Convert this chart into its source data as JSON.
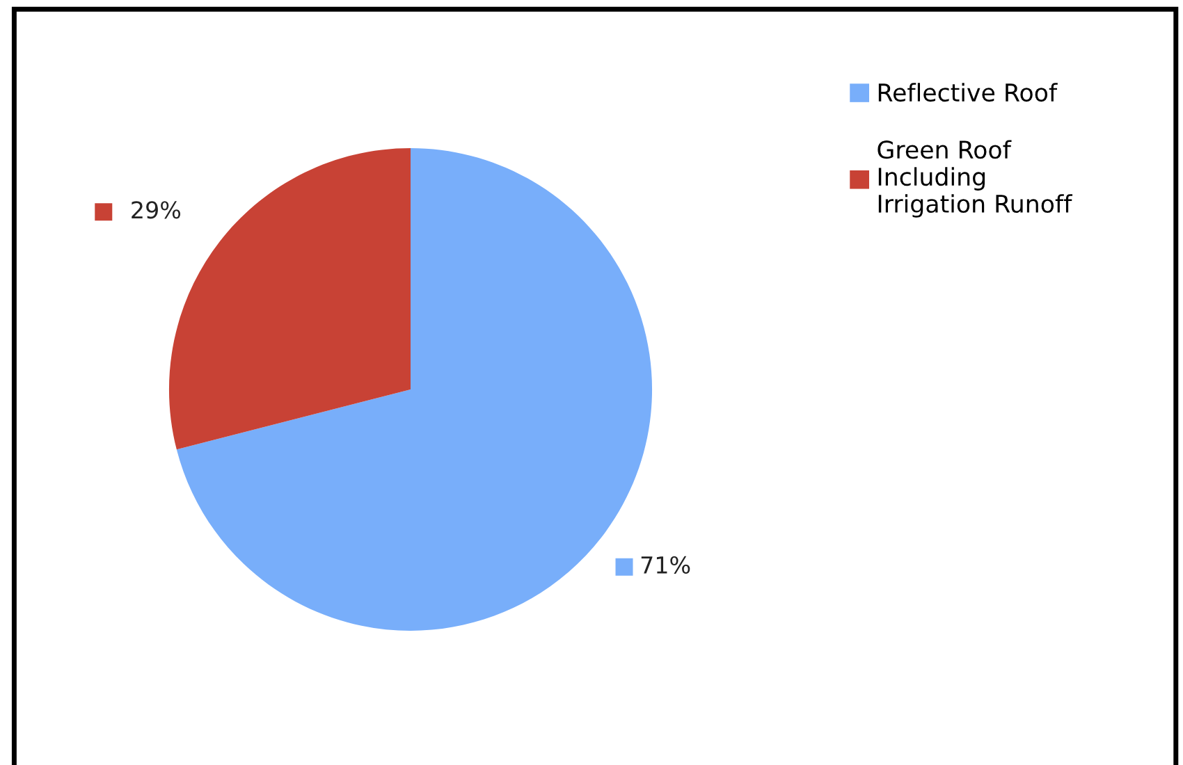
{
  "chart_data": {
    "type": "pie",
    "categories": [
      "Reflective Roof",
      "Green Roof Including Irrigation Runoff"
    ],
    "values": [
      71,
      29
    ],
    "colors": [
      "#78aefa",
      "#c84235"
    ],
    "value_labels": [
      "71%",
      "29%"
    ],
    "legend": "top right"
  }
}
